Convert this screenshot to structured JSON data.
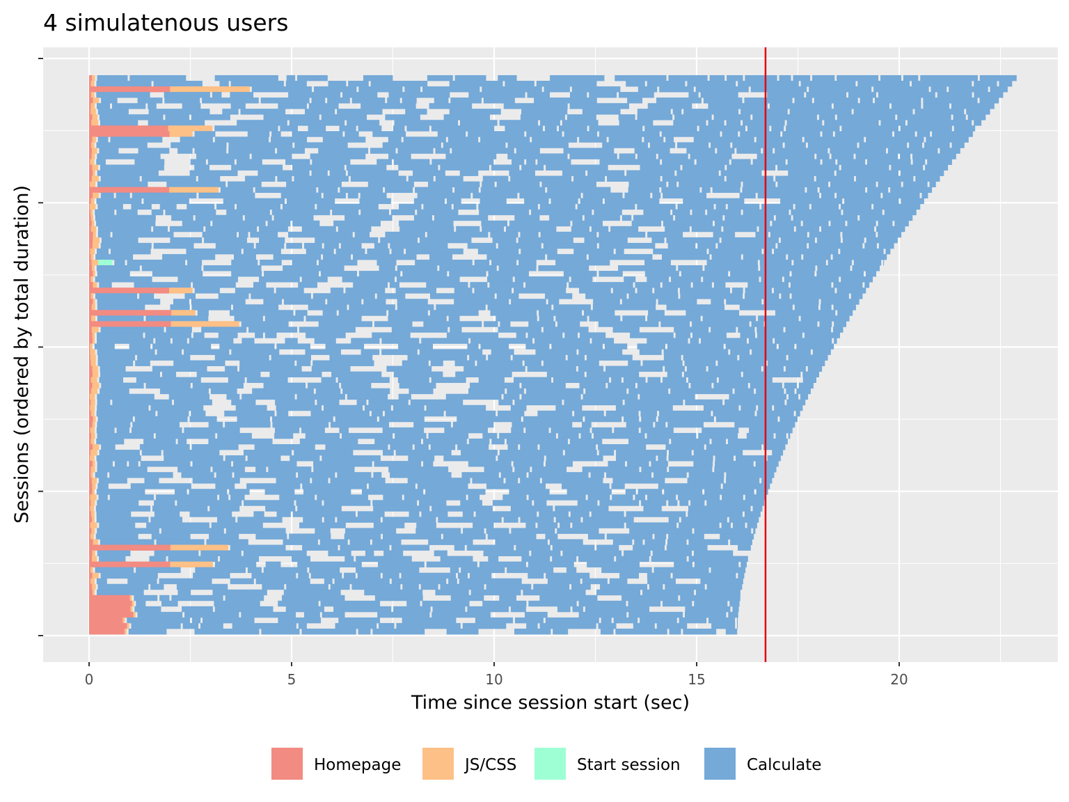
{
  "chart_data": {
    "type": "timeline",
    "title": "4 simulatenous users",
    "xlabel": "Time since session start (sec)",
    "ylabel": "Sessions (ordered by total duration)",
    "xlim": [
      -1.12,
      23.9
    ],
    "x_ticks": [
      0,
      5,
      10,
      15,
      20
    ],
    "x_tick_labels": [
      "0",
      "5",
      "10",
      "15",
      "20"
    ],
    "y_ticks_count": 5,
    "grid": true,
    "legend_position": "bottom",
    "reference_line": {
      "x": 16.7,
      "color": "#e3000f"
    },
    "session_count": 100,
    "first_session_duration": 16.0,
    "last_session_duration": 22.9,
    "series": [
      {
        "name": "Homepage",
        "color": "#f28b82"
      },
      {
        "name": "JS/CSS",
        "color": "#fdc086"
      },
      {
        "name": "Start session",
        "color": "#9effd5"
      },
      {
        "name": "Calculate",
        "color": "#74a9d8"
      }
    ]
  }
}
